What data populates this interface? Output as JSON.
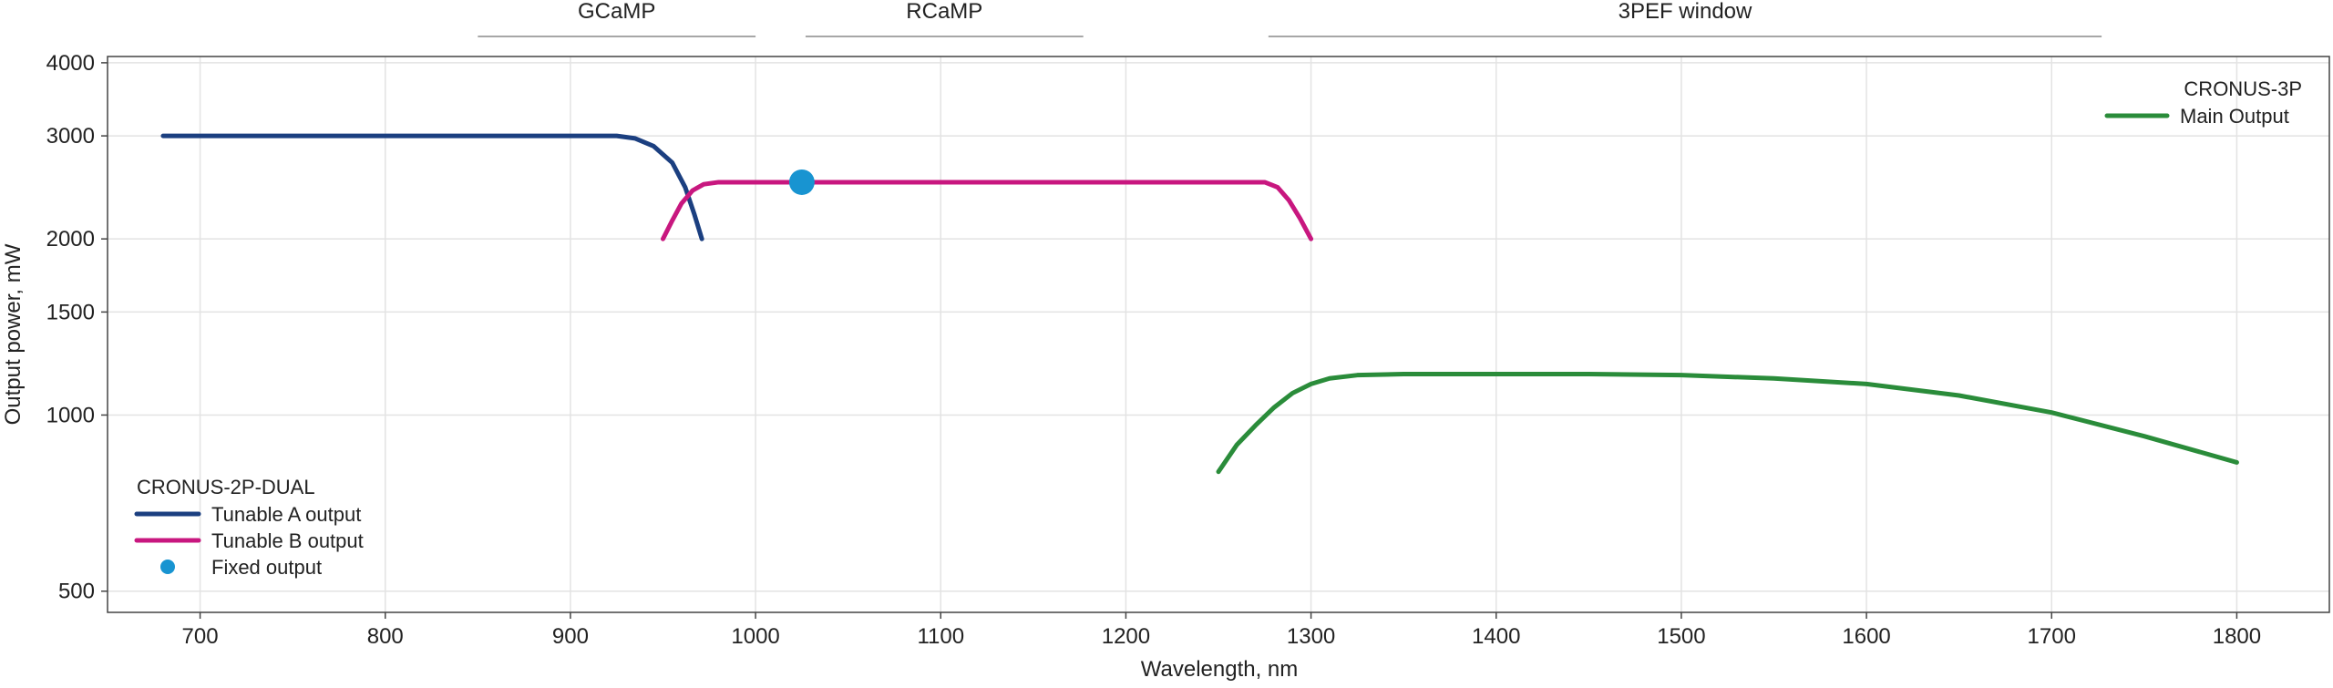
{
  "chart_data": {
    "type": "line",
    "xlabel": "Wavelength, nm",
    "ylabel": "Output power, mW",
    "xlim": [
      650,
      1850
    ],
    "ylim": [
      460,
      4100
    ],
    "yscale": "log",
    "x_ticks": [
      700,
      800,
      900,
      1000,
      1100,
      1200,
      1300,
      1400,
      1500,
      1600,
      1700,
      1800
    ],
    "y_ticks": [
      500,
      1000,
      1500,
      2000,
      3000,
      4000
    ],
    "grid": true,
    "bands": [
      {
        "label": "GCaMP",
        "x_start": 850,
        "x_end": 1000
      },
      {
        "label": "RCaMP",
        "x_start": 1027,
        "x_end": 1177
      },
      {
        "label": "3PEF window",
        "x_start": 1277,
        "x_end": 1727
      }
    ],
    "legends": [
      {
        "title": "CRONUS-2P-DUAL",
        "placement": "bottom-left",
        "entries": [
          {
            "label": "Tunable A output",
            "color": "#1b3f80",
            "marker": "line"
          },
          {
            "label": "Tunable B output",
            "color": "#c8177f",
            "marker": "line"
          },
          {
            "label": "Fixed output",
            "color": "#1894d1",
            "marker": "dot"
          }
        ]
      },
      {
        "title": "CRONUS-3P",
        "placement": "top-right",
        "entries": [
          {
            "label": "Main Output",
            "color": "#2a8c3a",
            "marker": "line"
          }
        ]
      }
    ],
    "series": [
      {
        "name": "Tunable A output",
        "color": "#1b3f80",
        "kind": "line",
        "points": [
          [
            680,
            3000
          ],
          [
            700,
            3000
          ],
          [
            800,
            3000
          ],
          [
            900,
            3000
          ],
          [
            925,
            3000
          ],
          [
            935,
            2970
          ],
          [
            945,
            2880
          ],
          [
            955,
            2700
          ],
          [
            962,
            2450
          ],
          [
            967,
            2200
          ],
          [
            971,
            2000
          ]
        ]
      },
      {
        "name": "Tunable B output",
        "color": "#c8177f",
        "kind": "line",
        "points": [
          [
            950,
            2000
          ],
          [
            955,
            2150
          ],
          [
            960,
            2300
          ],
          [
            966,
            2420
          ],
          [
            972,
            2480
          ],
          [
            980,
            2500
          ],
          [
            1100,
            2500
          ],
          [
            1200,
            2500
          ],
          [
            1275,
            2500
          ],
          [
            1282,
            2450
          ],
          [
            1288,
            2330
          ],
          [
            1294,
            2170
          ],
          [
            1300,
            2000
          ]
        ]
      },
      {
        "name": "Fixed output",
        "color": "#1894d1",
        "kind": "point",
        "points": [
          [
            1025,
            2500
          ]
        ]
      },
      {
        "name": "Main Output",
        "color": "#2a8c3a",
        "kind": "line",
        "points": [
          [
            1250,
            800
          ],
          [
            1260,
            890
          ],
          [
            1270,
            960
          ],
          [
            1280,
            1030
          ],
          [
            1290,
            1090
          ],
          [
            1300,
            1130
          ],
          [
            1310,
            1155
          ],
          [
            1325,
            1170
          ],
          [
            1350,
            1175
          ],
          [
            1400,
            1175
          ],
          [
            1450,
            1175
          ],
          [
            1500,
            1170
          ],
          [
            1550,
            1155
          ],
          [
            1600,
            1130
          ],
          [
            1650,
            1080
          ],
          [
            1700,
            1010
          ],
          [
            1750,
            920
          ],
          [
            1800,
            830
          ]
        ]
      }
    ]
  }
}
